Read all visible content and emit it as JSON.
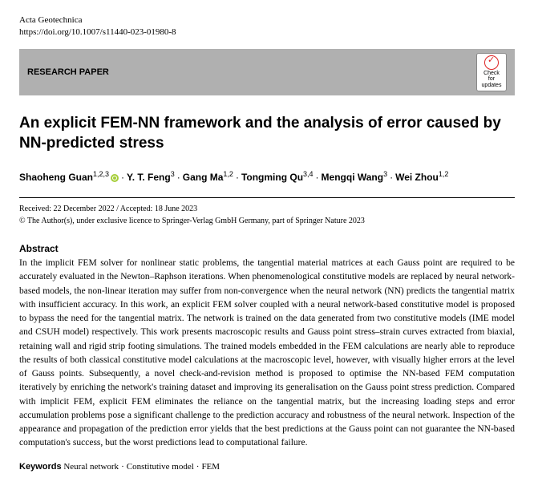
{
  "journal": {
    "name": "Acta Geotechnica",
    "doi": "https://doi.org/10.1007/s11440-023-01980-8"
  },
  "section_label": "RESEARCH PAPER",
  "check_updates": "Check for updates",
  "title": "An explicit FEM-NN framework and the analysis of error caused by NN-predicted stress",
  "authors": [
    {
      "name": "Shaoheng Guan",
      "affil": "1,2,3",
      "orcid": true
    },
    {
      "name": "Y. T. Feng",
      "affil": "3",
      "orcid": false
    },
    {
      "name": "Gang Ma",
      "affil": "1,2",
      "orcid": false
    },
    {
      "name": "Tongming Qu",
      "affil": "3,4",
      "orcid": false
    },
    {
      "name": "Mengqi Wang",
      "affil": "3",
      "orcid": false
    },
    {
      "name": "Wei Zhou",
      "affil": "1,2",
      "orcid": false
    }
  ],
  "dates": {
    "line": "Received: 22 December 2022 / Accepted: 18 June 2023",
    "copyright": "© The Author(s), under exclusive licence to Springer-Verlag GmbH Germany, part of Springer Nature 2023"
  },
  "abstract": {
    "heading": "Abstract",
    "text": "In the implicit FEM solver for nonlinear static problems, the tangential material matrices at each Gauss point are required to be accurately evaluated in the Newton–Raphson iterations. When phenomenological constitutive models are replaced by neural network-based models, the non-linear iteration may suffer from non-convergence when the neural network (NN) predicts the tangential matrix with insufficient accuracy. In this work, an explicit FEM solver coupled with a neural network-based constitutive model is proposed to bypass the need for the tangential matrix. The network is trained on the data generated from two constitutive models (IME model and CSUH model) respectively. This work presents macroscopic results and Gauss point stress–strain curves extracted from biaxial, retaining wall and rigid strip footing simulations. The trained models embedded in the FEM calculations are nearly able to reproduce the results of both classical constitutive model calculations at the macroscopic level, however, with visually higher errors at the level of Gauss points. Subsequently, a novel check-and-revision method is proposed to optimise the NN-based FEM computation iteratively by enriching the network's training dataset and improving its generalisation on the Gauss point stress prediction. Compared with implicit FEM, explicit FEM eliminates the reliance on the tangential matrix, but the increasing loading steps and error accumulation problems pose a significant challenge to the prediction accuracy and robustness of the neural network. Inspection of the appearance and propagation of the prediction error yields that the best predictions at the Gauss point can not guarantee the NN-based computation's success, but the worst predictions lead to computational failure."
  },
  "keywords": {
    "label": "Keywords",
    "items": [
      "Neural network",
      "Constitutive model",
      "FEM"
    ]
  }
}
